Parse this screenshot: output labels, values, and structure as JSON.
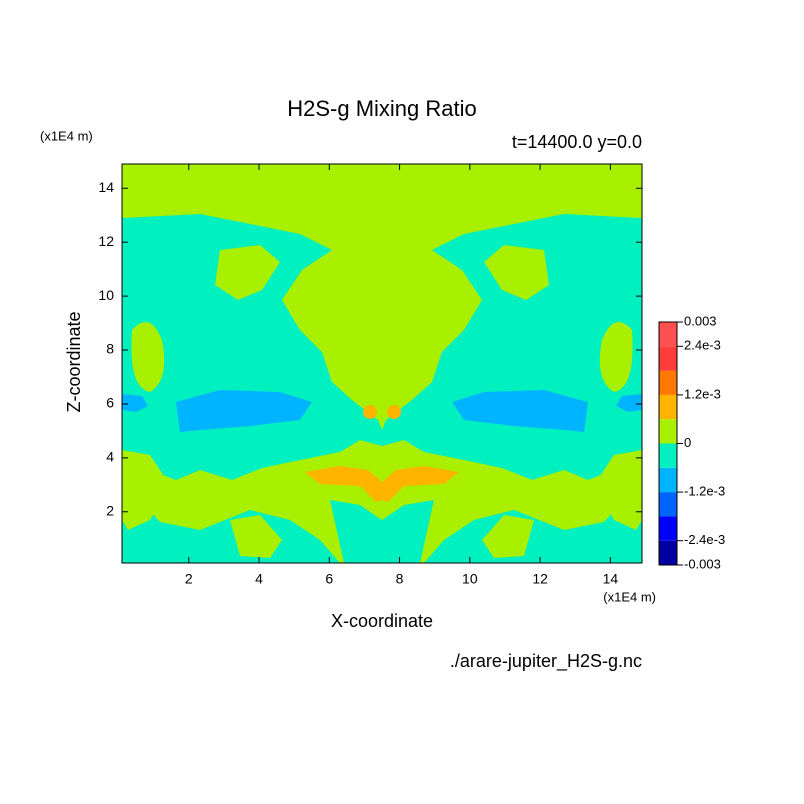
{
  "chart_data": {
    "type": "contour",
    "title": "H2S-g Mixing Ratio",
    "subtitle": "t=14400.0 y=0.0",
    "x_label": "X-coordinate",
    "y_label": "Z-coordinate",
    "x_unit": "(x1E4 m)",
    "y_unit": "(x1E4 m)",
    "source": "./arare-jupiter_H2S-g.nc",
    "xlim": [
      0.1,
      14.9
    ],
    "ylim": [
      0.1,
      14.9
    ],
    "xticks": [
      2,
      4,
      6,
      8,
      10,
      12,
      14
    ],
    "yticks": [
      2,
      4,
      6,
      8,
      10,
      12,
      14
    ],
    "colorbar": {
      "levels": [
        -0.003,
        -0.0024,
        -0.0018,
        -0.0012,
        -0.0006,
        0,
        0.0006,
        0.0012,
        0.0018,
        0.0024,
        0.003
      ],
      "colors": [
        "#0000a0",
        "#0000ff",
        "#0064ff",
        "#00b4ff",
        "#00f0c0",
        "#a8f000",
        "#ffb400",
        "#ff7800",
        "#ff3c3c",
        "#ff5050"
      ],
      "ticks": [
        -0.003,
        {
          "value": -0.0024,
          "label": "-2.4e-3"
        },
        {
          "value": -0.0012,
          "label": "-1.2e-3"
        },
        0,
        {
          "value": 0.0012,
          "label": "1.2e-3"
        },
        {
          "value": 0.0024,
          "label": "2.4e-3"
        },
        0.003
      ]
    }
  }
}
